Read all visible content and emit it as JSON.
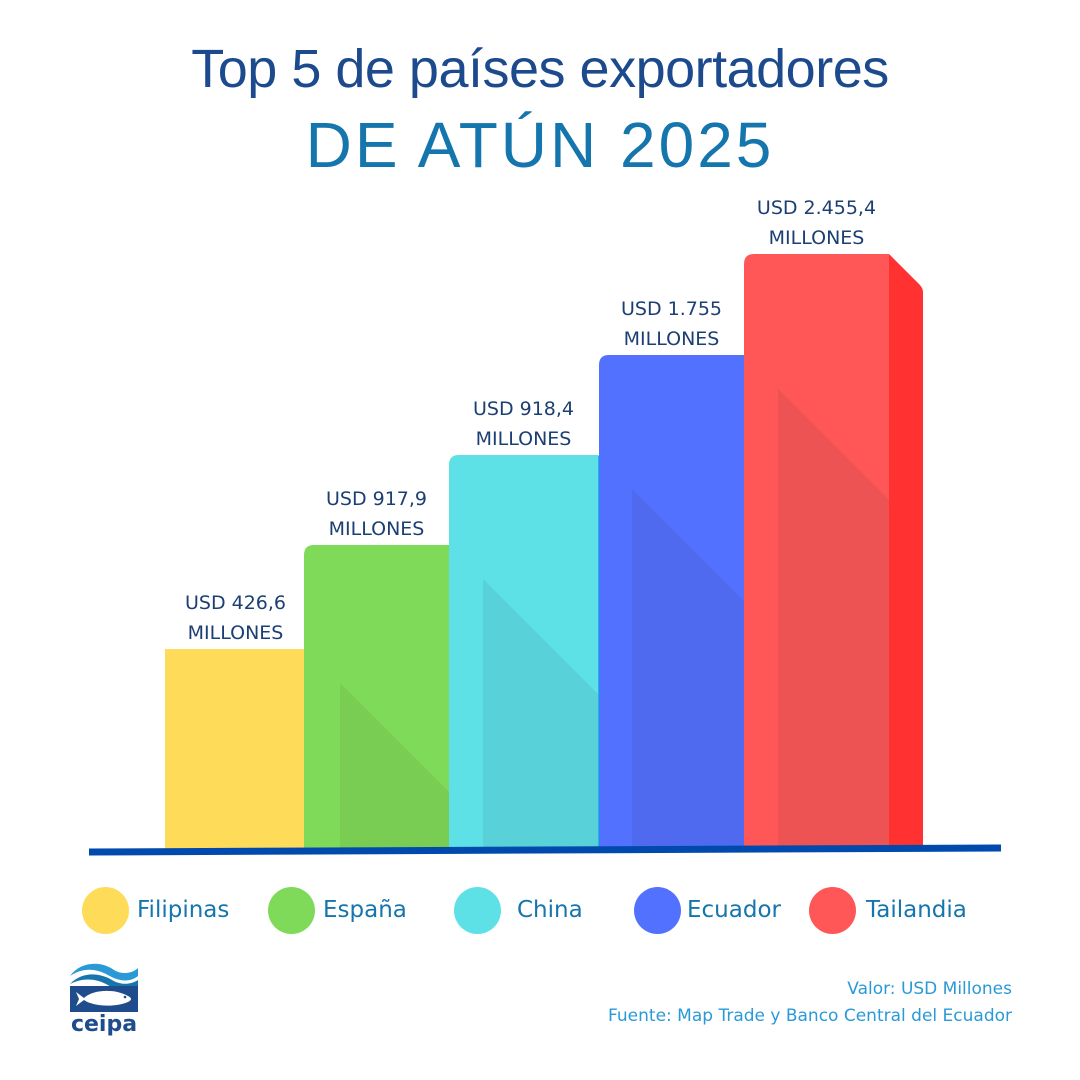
{
  "header": {
    "title_line1": "Top 5 de países exportadores",
    "title_line2": "DE ATÚN 2025"
  },
  "chart_data": {
    "type": "bar",
    "title": "Top 5 de países exportadores DE ATÚN 2025",
    "xlabel": "",
    "ylabel": "",
    "unit": "USD Millones",
    "categories": [
      "Filipinas",
      "España",
      "China",
      "Ecuador",
      "Tailandia"
    ],
    "values": [
      426.6,
      917.9,
      918.4,
      1755,
      2455.4
    ],
    "data_labels": [
      [
        "USD 426,6",
        "MILLONES"
      ],
      [
        "USD 917,9",
        "MILLONES"
      ],
      [
        "USD 918,4",
        "MILLONES"
      ],
      [
        "USD 1.755",
        "MILLONES"
      ],
      [
        "USD 2.455,4",
        "MILLONES"
      ]
    ],
    "colors": {
      "front": [
        "#FEDC5A",
        "#7FDA5A",
        "#5DE1E6",
        "#5271FF",
        "#FF5757"
      ],
      "side": [
        "#FFBC5A",
        "#00BF63",
        "#0CC0DF",
        "#004AAD",
        "#FF3131"
      ],
      "shadow": [
        "#FEDC5A",
        "#78CD52",
        "#58D2D8",
        "#4F6AEE",
        "#EE5353"
      ]
    },
    "bar_style": "3d-stepped",
    "legend_position": "bottom",
    "grid": false
  },
  "legend": [
    {
      "label": "Filipinas",
      "color": "#FEDC5A"
    },
    {
      "label": "España",
      "color": "#7FDA5A"
    },
    {
      "label": "China",
      "color": "#5DE1E6"
    },
    {
      "label": "Ecuador",
      "color": "#5271FF"
    },
    {
      "label": "Tailandia",
      "color": "#FF5757"
    }
  ],
  "footer": {
    "value_note": "Valor: USD Millones",
    "source_note": "Fuente: Map Trade y Banco Central del Ecuador"
  },
  "logo": {
    "name": "ceipa",
    "baseline_color": "#004AAD"
  }
}
